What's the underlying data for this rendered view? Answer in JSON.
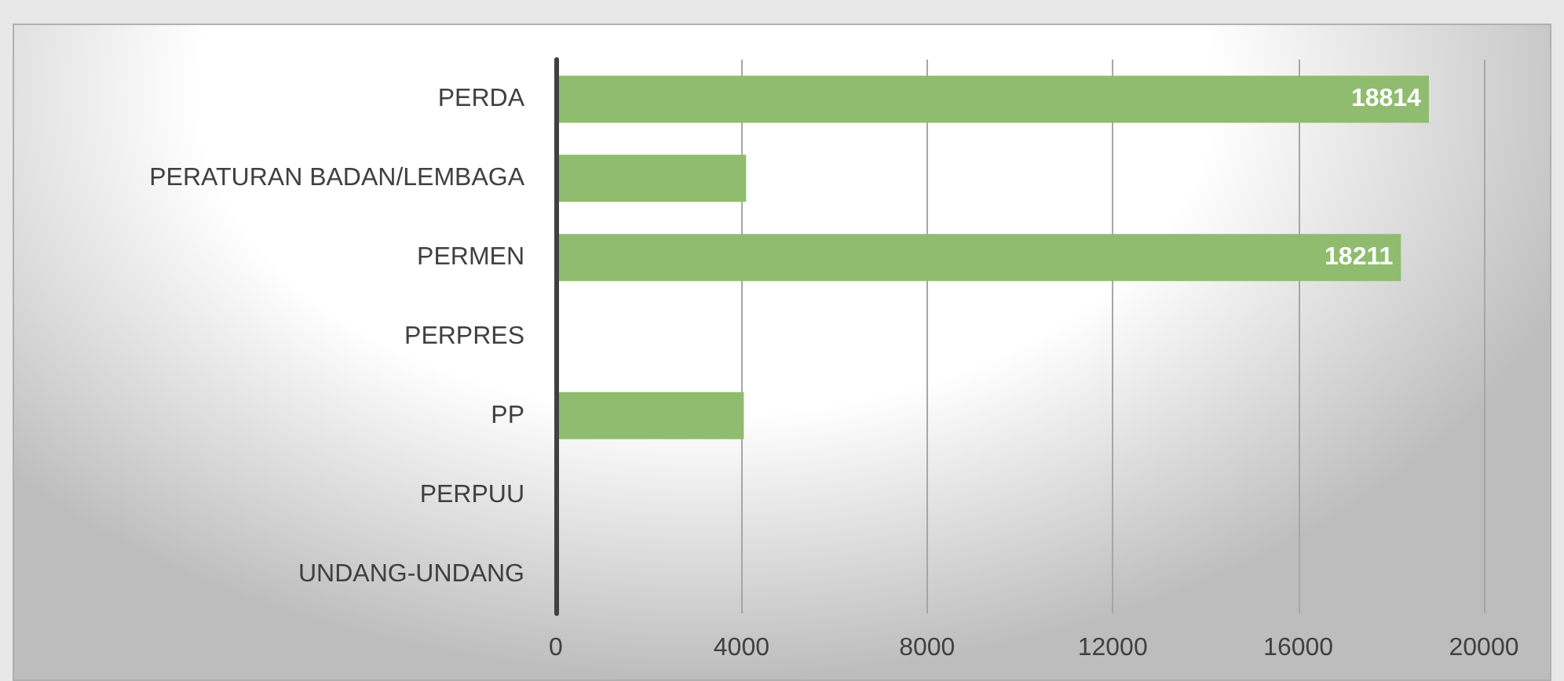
{
  "chart_data": {
    "type": "bar",
    "orientation": "horizontal",
    "categories": [
      "PERDA",
      "PERATURAN BADAN/LEMBAGA",
      "PERMEN",
      "PERPRES",
      "PP",
      "PERPUU",
      "UNDANG-UNDANG"
    ],
    "values": [
      18814,
      4100,
      18211,
      null,
      4050,
      null,
      null
    ],
    "value_labels": [
      "18814",
      null,
      "18211",
      null,
      null,
      null,
      null
    ],
    "color": "#8fbc6e",
    "xlim": [
      0,
      20000
    ],
    "xticks": [
      0,
      4000,
      8000,
      12000,
      16000,
      20000
    ],
    "grid": "x"
  }
}
